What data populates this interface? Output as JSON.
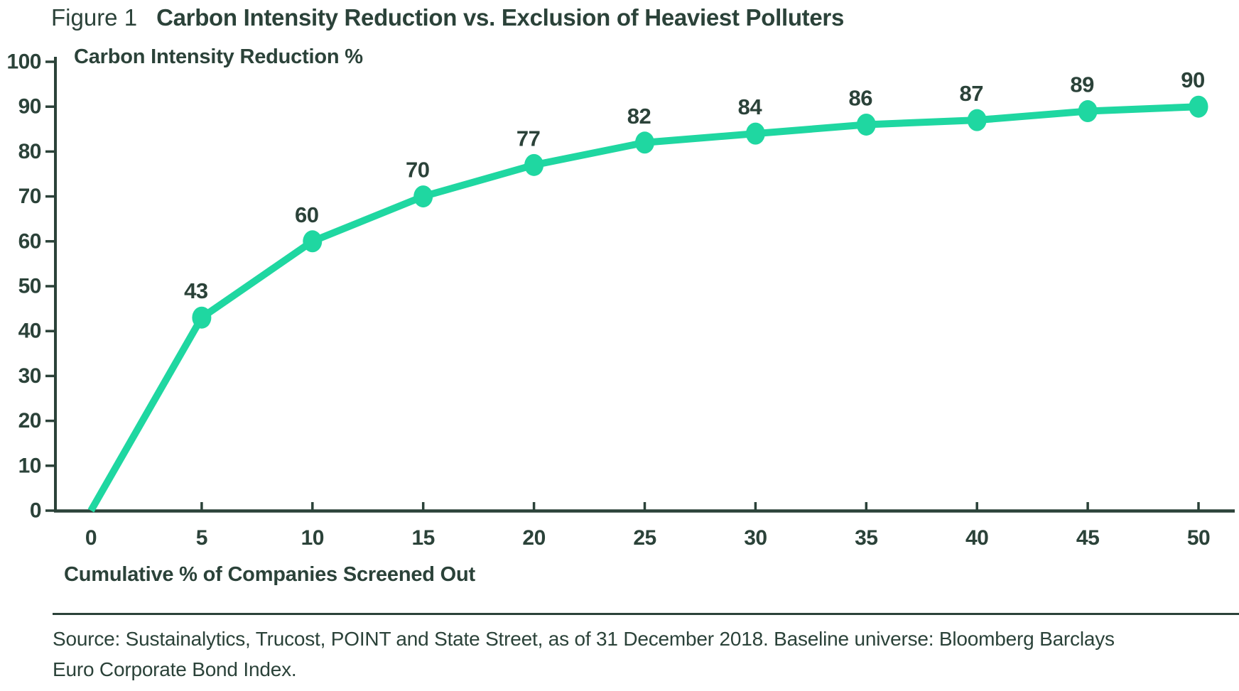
{
  "figure": {
    "label": "Figure 1",
    "title": "Carbon Intensity Reduction vs. Exclusion of Heaviest Polluters"
  },
  "colors": {
    "accent_green": "#1FD7A1",
    "text_dark": "#2B4239",
    "background": "#FFFFFF"
  },
  "chart_data": {
    "type": "line",
    "title": "Carbon Intensity Reduction vs. Exclusion of Heaviest Polluters",
    "xlabel": "Cumulative % of Companies Screened Out",
    "ylabel": "Carbon Intensity Reduction %",
    "x": [
      0,
      5,
      10,
      15,
      20,
      25,
      30,
      35,
      40,
      45,
      50
    ],
    "y": [
      0,
      43,
      60,
      70,
      77,
      82,
      84,
      86,
      87,
      89,
      90
    ],
    "point_labels": [
      "",
      "43",
      "60",
      "70",
      "77",
      "82",
      "84",
      "86",
      "87",
      "89",
      "90"
    ],
    "xticks": [
      0,
      5,
      10,
      15,
      20,
      25,
      30,
      35,
      40,
      45,
      50
    ],
    "yticks": [
      0,
      10,
      20,
      30,
      40,
      50,
      60,
      70,
      80,
      90,
      100
    ],
    "xlim": [
      0,
      50
    ],
    "ylim": [
      0,
      100
    ],
    "grid": false,
    "legend": "none",
    "line_color": "#1FD7A1",
    "marker": "circle"
  },
  "source": {
    "lines": [
      "Source: Sustainalytics, Trucost, POINT and State Street, as of 31 December 2018. Baseline universe: Bloomberg Barclays",
      "Euro Corporate Bond Index."
    ]
  }
}
